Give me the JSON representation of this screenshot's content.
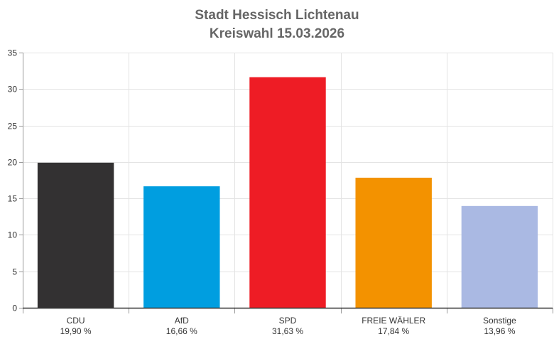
{
  "title_lines": [
    "Stadt Hessisch Lichtenau",
    "Kreiswahl 15.03.2026"
  ],
  "chart_data": {
    "type": "bar",
    "title": "Stadt Hessisch Lichtenau Kreiswahl 15.03.2026",
    "categories": [
      "CDU",
      "AfD",
      "SPD",
      "FREIE WÄHLER",
      "Sonstige"
    ],
    "values": [
      19.9,
      16.66,
      31.63,
      17.84,
      13.96
    ],
    "value_labels": [
      "19,90 %",
      "16,66 %",
      "31,63 %",
      "17,84 %",
      "13,96 %"
    ],
    "colors": [
      "#333132",
      "#009EE0",
      "#EE1C25",
      "#F39200",
      "#AAB9E3"
    ],
    "ylim": [
      0,
      35
    ],
    "yticks": [
      0,
      5,
      10,
      15,
      20,
      25,
      30,
      35
    ],
    "xlabel": "",
    "ylabel": "",
    "grid": true,
    "legend": "none"
  }
}
